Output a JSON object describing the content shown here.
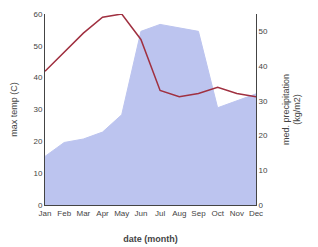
{
  "chart_data": {
    "type": "line",
    "xlabel": "date (month)",
    "ylabel": "max temp (C)",
    "y2label": "med. precipitation\n(kg/m2)",
    "categories": [
      "Jan",
      "Feb",
      "Mar",
      "Apr",
      "May",
      "Jun",
      "Jul",
      "Aug",
      "Sep",
      "Oct",
      "Nov",
      "Dec"
    ],
    "series": [
      {
        "type": "area",
        "axis": "y2",
        "color": "#bcc4ef",
        "values": [
          14,
          18,
          19,
          21,
          26,
          50,
          52,
          51,
          50,
          28,
          30,
          32
        ]
      },
      {
        "type": "line",
        "color": "#a03040",
        "values": [
          42,
          48,
          54,
          59,
          60,
          52,
          36,
          34,
          35,
          37,
          35,
          34
        ]
      }
    ],
    "ylim": [
      0,
      60
    ],
    "yticks": [
      0,
      10,
      20,
      30,
      40,
      50,
      60
    ],
    "y2lim": [
      0,
      55
    ],
    "y2ticks": [
      0,
      10,
      20,
      30,
      40,
      50
    ],
    "grid": false
  }
}
